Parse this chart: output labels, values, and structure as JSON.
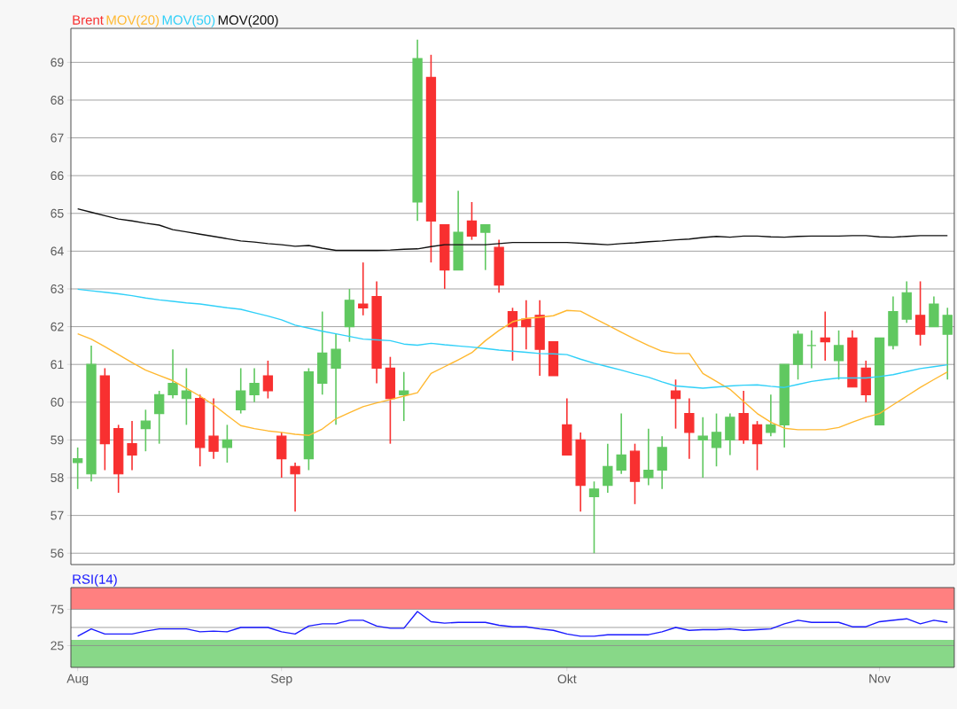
{
  "chart_data": [
    {
      "type": "candlestick",
      "legend": "top left",
      "grid": "y",
      "tick_labels": "y",
      "categories": [
        null,
        null,
        null,
        null,
        null,
        null,
        null,
        null,
        null,
        null,
        null,
        null,
        null,
        null,
        null,
        null,
        null,
        null,
        null,
        null,
        null,
        null,
        null,
        null,
        null,
        null,
        null,
        null,
        null,
        null,
        null,
        null,
        null,
        null,
        null,
        null,
        null,
        null,
        null,
        null,
        null,
        null,
        null,
        null,
        null,
        null,
        null,
        null,
        null,
        null,
        null,
        null,
        null,
        null,
        null,
        null,
        null,
        null,
        null,
        null,
        null,
        null,
        null,
        null,
        null
      ],
      "ylim": [
        55.7,
        69.9
      ],
      "yticks": [
        56,
        57,
        58,
        59,
        60,
        61,
        62,
        63,
        64,
        65,
        66,
        67,
        68,
        69
      ],
      "series": [
        {
          "type": "candlestick",
          "name": "Brent",
          "color": "#f83030",
          "colors": [
            "#60c860",
            "#60c860",
            "#f83030",
            "#f83030",
            "#f83030",
            "#60c860",
            "#60c860",
            "#60c860",
            "#60c860",
            "#f83030",
            "#f83030",
            "#60c860",
            "#60c860",
            "#60c860",
            "#f83030",
            "#f83030",
            "#f83030",
            "#60c860",
            "#60c860",
            "#60c860",
            "#60c860",
            "#f83030",
            "#f83030",
            "#f83030",
            "#60c860",
            "#60c860",
            "#f83030",
            "#f83030",
            "#60c860",
            "#f83030",
            "#60c860",
            "#f83030",
            "#f83030",
            "#f83030",
            "#f83030",
            "#f83030",
            "#f83030",
            "#f83030",
            "#60c860",
            "#60c860",
            "#60c860",
            "#f83030",
            "#60c860",
            "#60c860",
            "#f83030",
            "#f83030",
            "#60c860",
            "#60c860",
            "#60c860",
            "#f83030",
            "#f83030",
            "#60c860",
            "#60c860",
            "#60c860",
            "#60c860",
            "#f83030",
            "#60c860",
            "#f83030",
            "#f83030",
            "#60c860",
            "#60c860",
            "#60c860",
            "#f83030",
            "#60c860",
            "#60c860"
          ],
          "ohlc": [
            [
              58.4,
              58.8,
              57.7,
              58.5
            ],
            [
              58.1,
              61.5,
              57.9,
              61.0
            ],
            [
              60.7,
              60.9,
              58.2,
              58.9
            ],
            [
              59.3,
              59.4,
              57.6,
              58.1
            ],
            [
              58.9,
              59.5,
              58.2,
              58.6
            ],
            [
              59.3,
              59.8,
              58.7,
              59.5
            ],
            [
              59.7,
              60.3,
              58.9,
              60.2
            ],
            [
              60.2,
              61.4,
              60.1,
              60.5
            ],
            [
              60.1,
              60.9,
              59.4,
              60.3
            ],
            [
              60.1,
              60.2,
              58.3,
              58.8
            ],
            [
              59.1,
              60.1,
              58.5,
              58.7
            ],
            [
              58.8,
              59.4,
              58.4,
              59.0
            ],
            [
              59.8,
              60.9,
              59.7,
              60.3
            ],
            [
              60.2,
              60.9,
              60.0,
              60.5
            ],
            [
              60.7,
              61.1,
              60.1,
              60.3
            ],
            [
              59.1,
              59.2,
              58.0,
              58.5
            ],
            [
              58.3,
              58.4,
              57.1,
              58.1
            ],
            [
              58.5,
              60.9,
              58.2,
              60.8
            ],
            [
              60.5,
              62.4,
              60.2,
              61.3
            ],
            [
              60.9,
              61.8,
              59.4,
              61.4
            ],
            [
              62.0,
              63.0,
              61.6,
              62.7
            ],
            [
              62.6,
              63.7,
              62.3,
              62.5
            ],
            [
              62.8,
              63.2,
              60.5,
              60.9
            ],
            [
              60.9,
              61.2,
              58.9,
              60.1
            ],
            [
              60.2,
              60.8,
              59.5,
              60.3
            ],
            [
              65.3,
              69.6,
              64.8,
              69.1
            ],
            [
              68.6,
              69.2,
              63.7,
              64.8
            ],
            [
              64.7,
              64.7,
              63.0,
              63.5
            ],
            [
              63.5,
              65.6,
              63.5,
              64.5
            ],
            [
              64.8,
              65.3,
              64.3,
              64.4
            ],
            [
              64.5,
              64.7,
              63.5,
              64.7
            ],
            [
              64.1,
              64.3,
              62.9,
              63.1
            ],
            [
              62.4,
              62.5,
              61.1,
              62.0
            ],
            [
              62.2,
              62.7,
              61.4,
              62.0
            ],
            [
              62.3,
              62.7,
              60.7,
              61.4
            ],
            [
              61.6,
              61.6,
              60.7,
              60.7
            ],
            [
              59.4,
              60.1,
              58.6,
              58.6
            ],
            [
              59.0,
              59.2,
              57.1,
              57.8
            ],
            [
              57.5,
              57.9,
              56.0,
              57.7
            ],
            [
              57.8,
              58.9,
              57.6,
              58.3
            ],
            [
              58.2,
              59.7,
              58.1,
              58.6
            ],
            [
              58.7,
              58.9,
              57.3,
              57.9
            ],
            [
              58.0,
              59.3,
              57.8,
              58.2
            ],
            [
              58.2,
              59.1,
              57.7,
              58.8
            ],
            [
              60.3,
              60.6,
              59.3,
              60.1
            ],
            [
              59.7,
              60.1,
              58.5,
              59.2
            ],
            [
              59.0,
              59.6,
              58.0,
              59.1
            ],
            [
              58.8,
              59.7,
              58.3,
              59.2
            ],
            [
              59.0,
              59.7,
              58.6,
              59.6
            ],
            [
              59.7,
              60.3,
              58.9,
              59.0
            ],
            [
              59.4,
              59.5,
              58.2,
              58.9
            ],
            [
              59.2,
              60.2,
              59.1,
              59.4
            ],
            [
              59.4,
              61.0,
              58.8,
              61.0
            ],
            [
              61.0,
              61.9,
              60.6,
              61.8
            ],
            [
              61.5,
              61.9,
              60.9,
              61.5
            ],
            [
              61.7,
              62.4,
              61.1,
              61.6
            ],
            [
              61.1,
              61.9,
              60.6,
              61.5
            ],
            [
              61.7,
              61.9,
              60.4,
              60.4
            ],
            [
              60.9,
              61.1,
              60.0,
              60.2
            ],
            [
              59.4,
              61.7,
              59.4,
              61.7
            ],
            [
              61.5,
              62.8,
              61.4,
              62.4
            ],
            [
              62.2,
              63.2,
              62.1,
              62.9
            ],
            [
              62.3,
              63.2,
              61.5,
              61.8
            ],
            [
              62.0,
              62.8,
              62.0,
              62.6
            ],
            [
              61.8,
              62.5,
              60.6,
              62.3
            ]
          ]
        },
        {
          "type": "line",
          "name": "MOV(20)",
          "color": "#ffb830",
          "values": [
            61.81,
            61.67,
            61.47,
            61.26,
            61.05,
            60.85,
            60.71,
            60.57,
            60.37,
            60.16,
            59.93,
            59.65,
            59.38,
            59.3,
            59.24,
            59.2,
            59.15,
            59.12,
            59.29,
            59.56,
            59.72,
            59.88,
            59.98,
            60.07,
            60.16,
            60.25,
            60.76,
            60.94,
            61.12,
            61.31,
            61.63,
            61.9,
            62.13,
            62.22,
            62.25,
            62.29,
            62.43,
            62.41,
            62.22,
            62.04,
            61.85,
            61.67,
            61.5,
            61.35,
            61.29,
            61.29,
            60.76,
            60.55,
            60.34,
            60.02,
            59.7,
            59.47,
            59.31,
            59.27,
            59.27,
            59.27,
            59.33,
            59.47,
            59.6,
            59.7,
            59.93,
            60.16,
            60.39,
            60.6,
            60.8
          ]
        },
        {
          "type": "line",
          "name": "MOV(50)",
          "color": "#30d0f8",
          "values": [
            62.99,
            62.95,
            62.91,
            62.87,
            62.82,
            62.76,
            62.71,
            62.67,
            62.63,
            62.6,
            62.55,
            62.5,
            62.46,
            62.37,
            62.28,
            62.18,
            62.04,
            61.96,
            61.88,
            61.81,
            61.74,
            61.67,
            61.65,
            61.63,
            61.54,
            61.51,
            61.56,
            61.52,
            61.49,
            61.46,
            61.42,
            61.38,
            61.35,
            61.32,
            61.29,
            61.28,
            61.26,
            61.14,
            61.03,
            60.94,
            60.85,
            60.75,
            60.66,
            60.54,
            60.43,
            60.4,
            60.37,
            60.4,
            60.43,
            60.45,
            60.46,
            60.42,
            60.39,
            60.47,
            60.55,
            60.6,
            60.64,
            60.64,
            60.64,
            60.68,
            60.73,
            60.81,
            60.89,
            60.94,
            60.99
          ]
        },
        {
          "type": "line",
          "name": "MOV(200)",
          "color": "#101010",
          "values": [
            65.12,
            65.03,
            64.94,
            64.85,
            64.8,
            64.74,
            64.69,
            64.57,
            64.51,
            64.45,
            64.39,
            64.33,
            64.27,
            64.24,
            64.2,
            64.17,
            64.13,
            64.15,
            64.08,
            64.02,
            64.02,
            64.02,
            64.02,
            64.03,
            64.05,
            64.06,
            64.12,
            64.17,
            64.17,
            64.17,
            64.17,
            64.2,
            64.23,
            64.23,
            64.23,
            64.23,
            64.23,
            64.21,
            64.19,
            64.17,
            64.2,
            64.22,
            64.25,
            64.27,
            64.3,
            64.32,
            64.36,
            64.39,
            64.37,
            64.4,
            64.4,
            64.38,
            64.37,
            64.39,
            64.4,
            64.4,
            64.4,
            64.41,
            64.41,
            64.38,
            64.37,
            64.39,
            64.41,
            64.41,
            64.41
          ]
        }
      ]
    },
    {
      "type": "line",
      "legend": "top left",
      "grid": "y",
      "categories": [
        "Aug",
        null,
        null,
        null,
        null,
        null,
        null,
        null,
        null,
        null,
        null,
        null,
        null,
        null,
        null,
        "Sep",
        null,
        null,
        null,
        null,
        null,
        null,
        null,
        null,
        null,
        null,
        null,
        null,
        null,
        null,
        null,
        null,
        null,
        null,
        null,
        null,
        "Okt",
        null,
        null,
        null,
        null,
        null,
        null,
        null,
        null,
        null,
        null,
        null,
        null,
        null,
        null,
        null,
        null,
        null,
        null,
        null,
        null,
        null,
        null,
        "Nov",
        null,
        null,
        null,
        null,
        null
      ],
      "ylim": [
        -5,
        105
      ],
      "yticks": [
        25,
        75
      ],
      "bands": [
        {
          "axis": "y",
          "from": 75,
          "to": 105,
          "color": "#ff8080"
        },
        {
          "axis": "y",
          "from": -5,
          "to": 33,
          "color": "#88d888"
        }
      ],
      "ref_lines": [
        {
          "axis": "y",
          "value": 50,
          "color": "#a0a0a0"
        }
      ],
      "series": [
        {
          "name": "RSI(14)",
          "color": "#1a1aff",
          "values": [
            38,
            48,
            41,
            41,
            41,
            45,
            48,
            48,
            48,
            44,
            45,
            44,
            50,
            50,
            50,
            44,
            41,
            52,
            55,
            55,
            60,
            60,
            52,
            49,
            49,
            72,
            58,
            56,
            57,
            57,
            57,
            53,
            51,
            51,
            48,
            46,
            41,
            38,
            38,
            40,
            40,
            40,
            40,
            44,
            50,
            46,
            47,
            47,
            48,
            46,
            47,
            48,
            55,
            60,
            57,
            57,
            57,
            51,
            51,
            58,
            60,
            62,
            55,
            60,
            57
          ]
        }
      ]
    }
  ]
}
